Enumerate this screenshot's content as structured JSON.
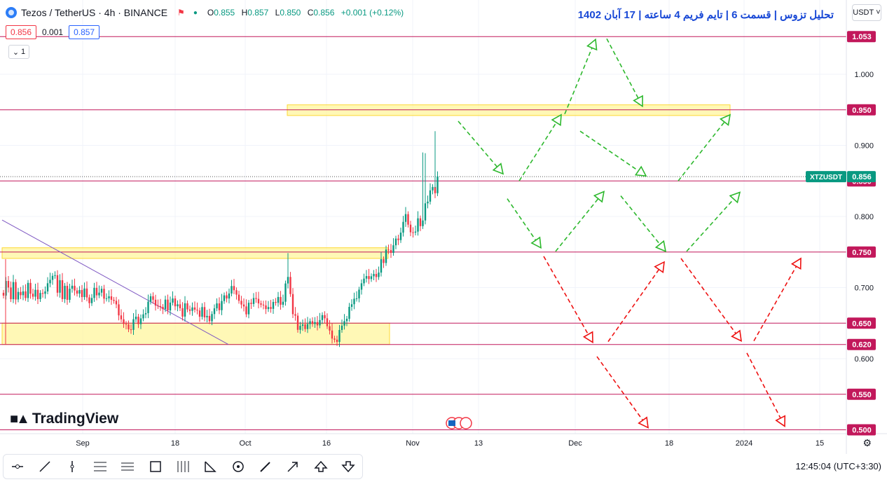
{
  "header": {
    "symbol_title": "Tezos / TetherUS · 4h · BINANCE",
    "open_label": "O",
    "open": "0.855",
    "high_label": "H",
    "high": "0.857",
    "low_label": "L",
    "low": "0.850",
    "close_label": "C",
    "close": "0.856",
    "change": "+0.001 (+0.12%)"
  },
  "price_box": {
    "sell": "0.856",
    "spread": "0.001",
    "buy": "0.857"
  },
  "indicator_toggle": "1",
  "post_title": "تحلیل تزوس | قسمت 6 | تایم فریم 4 ساعته | 17 آبان 1402",
  "currency_button": "USDT",
  "brand": "TradingView",
  "clock": "12:45:04",
  "timezone": "(UTC+3:30)",
  "colors": {
    "up": "#089981",
    "down": "#f23645",
    "level_line": "#c2185b",
    "zone_fill": "#fff59d",
    "zone_stroke": "#fdd835",
    "bull_arrow": "#2db82d",
    "bear_arrow": "#ee1111",
    "title": "#1848d6",
    "trendline": "#7e57c2"
  },
  "icons": [
    "cursor-icon",
    "trend-line-icon",
    "vertical-line-icon",
    "fib-icon",
    "parallel-channel-icon",
    "rectangle-icon",
    "long-position-icon",
    "pattern-icon",
    "circle-icon",
    "brush-icon",
    "arrow-icon",
    "arrow-up-icon",
    "arrow-down-icon"
  ],
  "chart_data": {
    "type": "candlestick",
    "symbol": "XTZUSDT",
    "last_price": "0.856",
    "y_ticks": [
      "1.000",
      "0.900",
      "0.800",
      "0.700",
      "0.600"
    ],
    "y_values": [
      1.0,
      0.9,
      0.8,
      0.7,
      0.6
    ],
    "x_ticks": [
      "Sep",
      "18",
      "Oct",
      "16",
      "Nov",
      "13",
      "Dec",
      "18",
      "2024",
      "15"
    ],
    "horizontal_levels": [
      {
        "value": 1.053,
        "label": "1.053"
      },
      {
        "value": 0.95,
        "label": "0.950"
      },
      {
        "value": 0.85,
        "label": "0.850"
      },
      {
        "value": 0.75,
        "label": "0.750"
      },
      {
        "value": 0.65,
        "label": "0.650"
      },
      {
        "value": 0.62,
        "label": "0.620"
      },
      {
        "value": 0.55,
        "label": "0.550"
      },
      {
        "value": 0.5,
        "label": "0.500"
      }
    ],
    "zones": [
      {
        "from": 0.942,
        "to": 0.957
      },
      {
        "from": 0.741,
        "to": 0.756
      },
      {
        "from": 0.62,
        "to": 0.65
      }
    ],
    "path_points": [
      0.6887,
      0.7093,
      0.7001,
      0.6837,
      0.7078,
      0.6833,
      0.6939,
      0.6893,
      0.6947,
      0.6853,
      0.7066,
      0.6914,
      0.6872,
      0.6969,
      0.6838,
      0.6924,
      0.6913,
      0.6946,
      0.7061,
      0.7109,
      0.7165,
      0.7174,
      0.6928,
      0.7104,
      0.6838,
      0.7025,
      0.6828,
      0.6984,
      0.7026,
      0.6959,
      0.6915,
      0.6966,
      0.6867,
      0.6987,
      0.6862,
      0.6781,
      0.6854,
      0.6996,
      0.6891,
      0.6929,
      0.6983,
      0.6844,
      0.6849,
      0.6877,
      0.6828,
      0.6814,
      0.6764,
      0.6609,
      0.6554,
      0.6489,
      0.6482,
      0.6413,
      0.6405,
      0.6555,
      0.6591,
      0.6486,
      0.6567,
      0.6624,
      0.664,
      0.6802,
      0.6878,
      0.6829,
      0.6747,
      0.674,
      0.6728,
      0.6698,
      0.6831,
      0.6679,
      0.6789,
      0.6847,
      0.6737,
      0.6765,
      0.671,
      0.6592,
      0.6779,
      0.6693,
      0.6673,
      0.6721,
      0.6689,
      0.6678,
      0.659,
      0.6726,
      0.6581,
      0.6602,
      0.6527,
      0.6628,
      0.6708,
      0.6778,
      0.6682,
      0.6811,
      0.6891,
      0.6847,
      0.6917,
      0.7022,
      0.6963,
      0.6901,
      0.6814,
      0.6762,
      0.6735,
      0.6624,
      0.6786,
      0.677,
      0.6853,
      0.6841,
      0.6778,
      0.676,
      0.6749,
      0.6698,
      0.6726,
      0.6701,
      0.6798,
      0.6786,
      0.6868,
      0.6759,
      0.6801,
      0.7058,
      0.715,
      0.6909,
      0.6626,
      0.6605,
      0.6406,
      0.6462,
      0.6482,
      0.6417,
      0.6487,
      0.6527,
      0.6488,
      0.6515,
      0.6468,
      0.6543,
      0.6613,
      0.6568,
      0.6457,
      0.6396,
      0.6283,
      0.6268,
      0.6235,
      0.6404,
      0.6465,
      0.6528,
      0.6561,
      0.6729,
      0.6766,
      0.6843,
      0.6848,
      0.6971,
      0.706,
      0.7126,
      0.7162,
      0.712,
      0.7159,
      0.7192,
      0.7148,
      0.7211,
      0.7399,
      0.7346,
      0.7535,
      0.7528,
      0.7488,
      0.7595,
      0.7689,
      0.7668,
      0.7773,
      0.7924,
      0.8033,
      0.7885,
      0.7778,
      0.7774,
      0.7787,
      0.7974,
      0.7864,
      0.7944,
      0.8185,
      0.8209,
      0.8367,
      0.8415,
      0.8327,
      0.8564
    ],
    "trendline": {
      "start": 0.795,
      "end": 0.62
    },
    "bullish_scenario": [
      [
        [
          0.934,
          0.86
        ],
        [
          0.85,
          0.943
        ]
      ],
      [
        [
          0.944,
          1.049
        ],
        [
          1.05,
          0.955
        ]
      ],
      [
        [
          0.92,
          0.857
        ],
        [
          0.85,
          0.943
        ]
      ],
      [
        [
          0.825,
          0.756
        ],
        [
          0.751,
          0.835
        ]
      ],
      [
        [
          0.829,
          0.751
        ],
        [
          0.751,
          0.834
        ]
      ]
    ],
    "bearish_scenario": [
      [
        [
          0.744,
          0.623
        ],
        [
          0.624,
          0.736
        ]
      ],
      [
        [
          0.741,
          0.625
        ],
        [
          0.625,
          0.741
        ]
      ],
      [
        [
          0.603,
          0.503
        ],
        [
          0.608,
          0.505
        ]
      ]
    ]
  }
}
